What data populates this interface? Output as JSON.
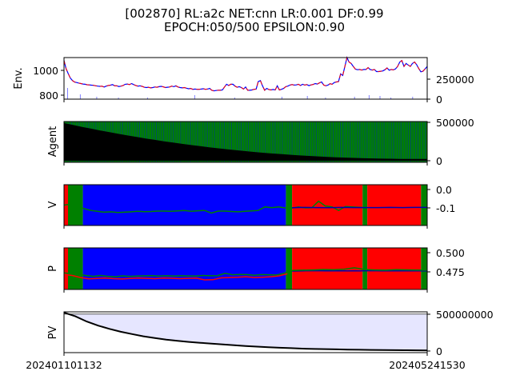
{
  "figure": {
    "title_line1": "[002870] RL:a2c NET:cnn LR:0.001 DF:0.99",
    "title_line2": "EPOCH:050/500 EPSILON:0.90"
  },
  "colors": {
    "price_blue": "#0000ff",
    "price_red": "#ff0000",
    "volume": "#8080ff",
    "agent_bar": "#000000",
    "action_green": "#008000",
    "region_blue": "#0000ff",
    "region_red": "#ff0000",
    "region_green": "#008000",
    "pv_fill": "#e6e6ff",
    "pv_line": "#000000"
  },
  "chart_data": [
    {
      "type": "line",
      "panel": "env",
      "ylabel": "Env.",
      "y_ticks": [
        "800",
        "1000"
      ],
      "y2_ticks": [
        "0",
        "250000"
      ],
      "ylim": [
        780,
        1060
      ],
      "y2lim": [
        0,
        520000
      ],
      "x_tick_labels": [
        "202401101132",
        "202405241530"
      ],
      "series": [
        {
          "values": [
            1040,
            985,
            952,
            922,
            905,
            895,
            892,
            888,
            885,
            882,
            880,
            877,
            876,
            874,
            873,
            870,
            868,
            866,
            867,
            862,
            868,
            872,
            874,
            878,
            870,
            870,
            865,
            868,
            872,
            880,
            882,
            878,
            885,
            878,
            872,
            868,
            870,
            866,
            860,
            858,
            860,
            856,
            858,
            862,
            860,
            864,
            866,
            863,
            858,
            860,
            862,
            868,
            864,
            870,
            862,
            858,
            856,
            858,
            854,
            850,
            852,
            846,
            848,
            846,
            846,
            848,
            850,
            846,
            848,
            852,
            840,
            836,
            838,
            840,
            840,
            842,
            862,
            880,
            872,
            880,
            880,
            868,
            860,
            864,
            858,
            848,
            862,
            840,
            840,
            842,
            846,
            848,
            898,
            905,
            870,
            840,
            852,
            845,
            842,
            845,
            842,
            870,
            842,
            846,
            852,
            864,
            868,
            875,
            878,
            875,
            876,
            880,
            872,
            880,
            875,
            878,
            871,
            876,
            879,
            885,
            882,
            890,
            896,
            875,
            870,
            874,
            884,
            880,
            892,
            896,
            898,
            950,
            940,
            1000,
            1060,
            1030,
            1020,
            1000,
            982,
            978,
            980,
            976,
            980,
            980,
            992,
            980,
            976,
            980,
            966,
            966,
            968,
            970,
            978,
            990,
            975,
            980,
            977,
            984,
            1000,
            1030,
            1040,
            1000,
            1020,
            1010,
            1000,
            1020,
            1030,
            1012,
            986,
            964,
            968,
            984,
            1000
          ]
        }
      ]
    },
    {
      "type": "bar",
      "panel": "agent",
      "ylabel": "Agent",
      "y_ticks": [
        "0",
        "500000"
      ],
      "ylim": [
        -20000,
        530000
      ],
      "start_value": 510000,
      "end_value": 25000
    },
    {
      "type": "line",
      "panel": "v",
      "ylabel": "V",
      "y_ticks": [
        "-0.1",
        "0.0"
      ],
      "ylim": [
        -0.205,
        0.025
      ],
      "regions": [
        {
          "from": 0.0,
          "to": 0.011,
          "color": "red"
        },
        {
          "from": 0.011,
          "to": 0.052,
          "color": "green"
        },
        {
          "from": 0.052,
          "to": 0.611,
          "color": "blue"
        },
        {
          "from": 0.611,
          "to": 0.628,
          "color": "green"
        },
        {
          "from": 0.628,
          "to": 0.822,
          "color": "red"
        },
        {
          "from": 0.822,
          "to": 0.835,
          "color": "green"
        },
        {
          "from": 0.835,
          "to": 0.983,
          "color": "red"
        },
        {
          "from": 0.983,
          "to": 1.0,
          "color": "green"
        }
      ],
      "series": [
        {
          "name": "v_green",
          "values": [
            -0.09,
            -0.085,
            -0.095,
            -0.11,
            -0.12,
            -0.125,
            -0.13,
            -0.128,
            -0.132,
            -0.13,
            -0.128,
            -0.125,
            -0.127,
            -0.126,
            -0.124,
            -0.124,
            -0.125,
            -0.123,
            -0.12,
            -0.125,
            -0.122,
            -0.12,
            -0.135,
            -0.124,
            -0.124,
            -0.126,
            -0.128,
            -0.125,
            -0.123,
            -0.12,
            -0.1,
            -0.105,
            -0.1,
            -0.106,
            -0.107,
            -0.1,
            -0.106,
            -0.105,
            -0.068,
            -0.095,
            -0.1,
            -0.12,
            -0.098,
            -0.1,
            -0.102,
            -0.105
          ]
        },
        {
          "name": "v_blue",
          "values": [
            -0.105,
            -0.103,
            -0.104,
            -0.105,
            -0.103,
            -0.104,
            -0.104,
            -0.104,
            -0.103,
            -0.104,
            -0.103,
            -0.103
          ]
        }
      ]
    },
    {
      "type": "line",
      "panel": "p",
      "ylabel": "P",
      "y_ticks": [
        "0.475",
        "0.500"
      ],
      "ylim": [
        0.4555,
        0.5045
      ],
      "regions": [
        {
          "from": 0.0,
          "to": 0.011,
          "color": "red"
        },
        {
          "from": 0.011,
          "to": 0.052,
          "color": "green"
        },
        {
          "from": 0.052,
          "to": 0.611,
          "color": "blue"
        },
        {
          "from": 0.611,
          "to": 0.628,
          "color": "green"
        },
        {
          "from": 0.628,
          "to": 0.822,
          "color": "red"
        },
        {
          "from": 0.822,
          "to": 0.835,
          "color": "green"
        },
        {
          "from": 0.835,
          "to": 0.983,
          "color": "red"
        },
        {
          "from": 0.983,
          "to": 1.0,
          "color": "green"
        }
      ],
      "series": [
        {
          "name": "p_green",
          "values": [
            0.475,
            0.474,
            0.473,
            0.472,
            0.471,
            0.472,
            0.471,
            0.4705,
            0.4715,
            0.471,
            0.4712,
            0.4715,
            0.4718,
            0.4712,
            0.4716,
            0.4712,
            0.4716,
            0.4714,
            0.4712,
            0.472,
            0.4716,
            0.4718,
            0.4745,
            0.4728,
            0.4732,
            0.473,
            0.4722,
            0.473,
            0.4728,
            0.4725,
            0.4744,
            0.4778
          ]
        },
        {
          "name": "p_red",
          "values": [
            0.473,
            0.472,
            0.4695,
            0.468,
            0.4685,
            0.469,
            0.4682,
            0.4678,
            0.4685,
            0.469,
            0.4686,
            0.4682,
            0.469,
            0.4687,
            0.4682,
            0.4686,
            0.4688,
            0.4668,
            0.467,
            0.4692,
            0.4695,
            0.4698,
            0.4705,
            0.4695,
            0.4698,
            0.4705,
            0.4715,
            0.474
          ]
        },
        {
          "name": "p_blue",
          "values": [
            0.4772,
            0.4775,
            0.4776,
            0.4775,
            0.4774,
            0.4774,
            0.4775,
            0.4776,
            0.4775,
            0.4774,
            0.4775,
            0.4775,
            0.4775
          ]
        },
        {
          "name": "p_right_green",
          "values": [
            0.4778,
            0.4782,
            0.4785,
            0.479,
            0.4787,
            0.4792,
            0.481,
            0.479,
            0.4785,
            0.4782,
            0.4788,
            0.4786,
            0.4784,
            0.4782
          ]
        }
      ]
    },
    {
      "type": "area",
      "panel": "pv",
      "ylabel": "PV",
      "y_ticks": [
        "0",
        "500000000"
      ],
      "ylim": [
        -20000000,
        530000000
      ],
      "upper": 500000000,
      "series": [
        {
          "name": "pv",
          "values": [
            520000000,
            470000000,
            400000000,
            345000000,
            300000000,
            262000000,
            230000000,
            200000000,
            177000000,
            155000000,
            138000000,
            125000000,
            113000000,
            102000000,
            91000000,
            80000000,
            70000000,
            61000000,
            53000000,
            46000000,
            40000000,
            34000000,
            30000000,
            27000000,
            24000000,
            21000000,
            19000000,
            17000000,
            15000000,
            13000000,
            12000000,
            11000000,
            10000000
          ]
        }
      ]
    }
  ]
}
